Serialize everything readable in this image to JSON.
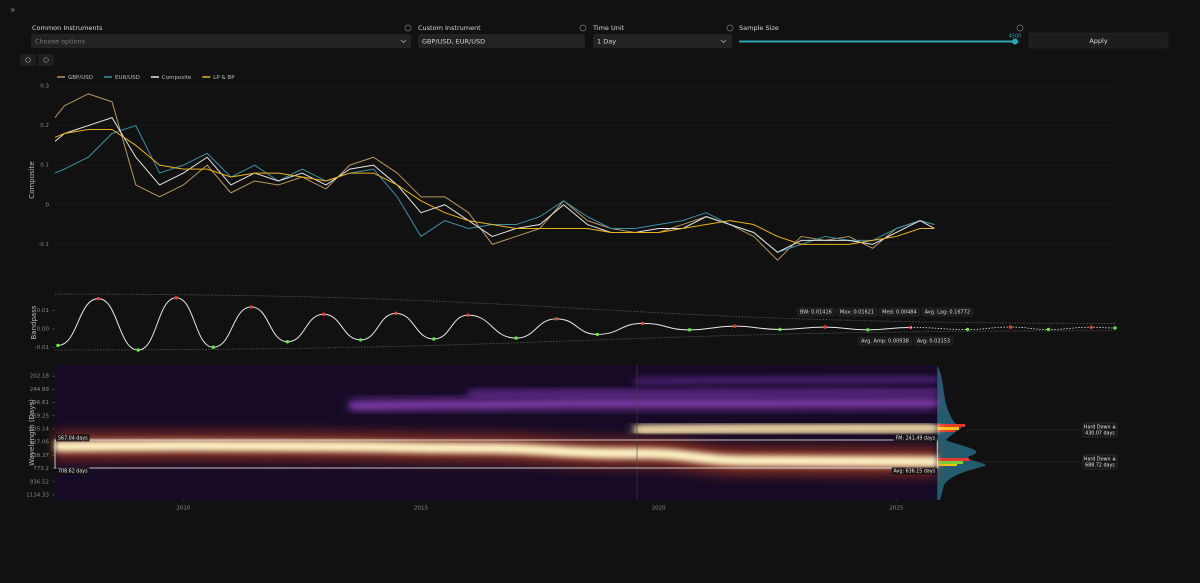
{
  "sidebar_toggle": "»",
  "controls": {
    "common_instruments": {
      "label": "Common Instruments",
      "placeholder": "Choose options"
    },
    "custom_instrument": {
      "label": "Custom Instrument",
      "value": "GBP/USD, EUR/USD"
    },
    "time_unit": {
      "label": "Time Unit",
      "value": "1 Day"
    },
    "sample_size": {
      "label": "Sample Size",
      "value": 4500
    },
    "apply": "Apply"
  },
  "chart_data": [
    {
      "type": "line",
      "ylabel": "Composite",
      "xlim": [
        2007.3,
        2029.6
      ],
      "ylim": [
        -0.19,
        0.315
      ],
      "yticks": [
        0.3,
        0.2,
        0.1,
        0,
        -0.1
      ],
      "grid": true,
      "legend": "top-left",
      "x": [
        2007.3,
        2007.5,
        2008.0,
        2008.5,
        2009.0,
        2009.5,
        2010.0,
        2010.5,
        2011.0,
        2011.5,
        2012.0,
        2012.5,
        2013.0,
        2013.5,
        2014.0,
        2014.5,
        2015.0,
        2015.5,
        2016.0,
        2016.5,
        2017.0,
        2017.5,
        2018.0,
        2018.5,
        2019.0,
        2019.5,
        2020.0,
        2020.5,
        2021.0,
        2021.5,
        2022.0,
        2022.5,
        2023.0,
        2023.5,
        2024.0,
        2024.5,
        2025.0,
        2025.5,
        2025.8
      ],
      "series": [
        {
          "name": "GBP/USD",
          "color": "#b89664",
          "values": [
            0.22,
            0.25,
            0.28,
            0.26,
            0.05,
            0.02,
            0.05,
            0.1,
            0.03,
            0.06,
            0.05,
            0.07,
            0.04,
            0.1,
            0.12,
            0.08,
            0.02,
            0.02,
            -0.02,
            -0.1,
            -0.08,
            -0.06,
            0.01,
            -0.04,
            -0.06,
            -0.07,
            -0.07,
            -0.05,
            -0.03,
            -0.05,
            -0.08,
            -0.14,
            -0.08,
            -0.09,
            -0.08,
            -0.11,
            -0.06,
            -0.04,
            -0.05
          ]
        },
        {
          "name": "EUR/USD",
          "color": "#3d8fa5",
          "values": [
            0.08,
            0.09,
            0.12,
            0.18,
            0.2,
            0.08,
            0.1,
            0.13,
            0.07,
            0.1,
            0.06,
            0.09,
            0.06,
            0.08,
            0.09,
            0.02,
            -0.08,
            -0.04,
            -0.06,
            -0.05,
            -0.05,
            -0.03,
            0.01,
            -0.03,
            -0.06,
            -0.06,
            -0.05,
            -0.04,
            -0.02,
            -0.05,
            -0.07,
            -0.12,
            -0.1,
            -0.08,
            -0.09,
            -0.09,
            -0.06,
            -0.04,
            -0.05
          ]
        },
        {
          "name": "Composite",
          "color": "#e6e6e6",
          "values": [
            0.16,
            0.18,
            0.2,
            0.22,
            0.12,
            0.05,
            0.08,
            0.12,
            0.05,
            0.08,
            0.06,
            0.08,
            0.05,
            0.09,
            0.1,
            0.05,
            -0.02,
            0.0,
            -0.04,
            -0.08,
            -0.06,
            -0.05,
            0.0,
            -0.05,
            -0.07,
            -0.07,
            -0.06,
            -0.06,
            -0.03,
            -0.05,
            -0.07,
            -0.12,
            -0.09,
            -0.09,
            -0.09,
            -0.1,
            -0.07,
            -0.04,
            -0.06
          ]
        },
        {
          "name": "LP & BP",
          "color": "#e6b422",
          "values": [
            0.17,
            0.18,
            0.19,
            0.19,
            0.15,
            0.1,
            0.09,
            0.09,
            0.07,
            0.08,
            0.08,
            0.07,
            0.06,
            0.08,
            0.08,
            0.05,
            0.01,
            -0.02,
            -0.04,
            -0.05,
            -0.06,
            -0.06,
            -0.06,
            -0.06,
            -0.07,
            -0.07,
            -0.07,
            -0.06,
            -0.05,
            -0.04,
            -0.05,
            -0.08,
            -0.1,
            -0.1,
            -0.1,
            -0.09,
            -0.08,
            -0.06,
            -0.06
          ]
        }
      ]
    },
    {
      "type": "line",
      "ylabel": "Bandpass",
      "xlim": [
        2007.3,
        2029.6
      ],
      "ylim": [
        -0.0115,
        0.0185
      ],
      "yticks": [
        0.01,
        {
          "value": 0,
          "label": "0.00"
        },
        -0.01
      ],
      "smooth": true,
      "extrema_markers": true,
      "peak_color": "#e0443c",
      "trough_color": "#6be04a",
      "series": [
        {
          "color": "#5a5a5a",
          "dash": true,
          "x": [
            2007.3,
            2029.6
          ],
          "values": [
            0.019,
            0.003
          ]
        },
        {
          "color": "#5a5a5a",
          "dash": true,
          "x": [
            2007.3,
            2029.6
          ],
          "values": [
            -0.0115,
            -0.001
          ]
        },
        {
          "color": "#e8e8e8",
          "x": [
            2007.36,
            2008.21,
            2009.05,
            2009.85,
            2010.63,
            2011.43,
            2012.19,
            2012.95,
            2013.73,
            2014.47,
            2015.27,
            2015.99,
            2017.0,
            2017.85,
            2018.71,
            2019.66,
            2020.65,
            2021.6,
            2022.55,
            2023.5,
            2024.4,
            2025.3
          ],
          "values": [
            -0.009,
            0.0165,
            -0.0115,
            0.017,
            -0.01,
            0.012,
            -0.007,
            0.008,
            -0.006,
            0.0085,
            -0.0055,
            0.0075,
            -0.005,
            0.0055,
            -0.003,
            0.003,
            -0.0005,
            0.0015,
            -0.0003,
            0.001,
            -0.0005,
            0.0008
          ]
        },
        {
          "color": "#e8e8e8",
          "dash": true,
          "x": [
            2025.3,
            2026.5,
            2027.4,
            2028.2,
            2029.1,
            2029.6
          ],
          "values": [
            0.0008,
            -0.0003,
            0.001,
            -0.0003,
            0.0009,
            0.0005
          ]
        }
      ],
      "stats": [
        "BW: 0.01416",
        "Max: 0.01621",
        "Med: 0.00484",
        "Avg. Lag: 0.16772"
      ],
      "stats_2": [
        "Avg. Amp: 0.00938",
        "Avg: 0.03153"
      ]
    },
    {
      "type": "heatmap",
      "ylabel": "Wavelength (Days)",
      "xlim": [
        2007.3,
        2029.6
      ],
      "xticks": [
        2010,
        2015,
        2020,
        2025
      ],
      "ylim": [
        172,
        1220
      ],
      "log": true,
      "y_inverted": true,
      "yticks": [
        202.18,
        244.89,
        296.61,
        359.25,
        435.14,
        527.06,
        638.37,
        773.2,
        936.52,
        1134.33
      ],
      "series": [
        {
          "color": "#fff3c4",
          "x": [
            2007.3,
            2010.0,
            2013.0,
            2016.0,
            2019.5,
            2022.0,
            2025.86
          ],
          "values": [
            560,
            555,
            560,
            575,
            620,
            690,
            700
          ]
        },
        {
          "color": "#ffe9b0",
          "x": [
            2019.5,
            2021.5,
            2023.5,
            2025.86
          ],
          "values": [
            440,
            435,
            432,
            430
          ]
        },
        {
          "color": "#8a3fb8",
          "x": [
            2013.5,
            2016.0,
            2019.0,
            2022.0,
            2025.86
          ],
          "values": [
            310,
            305,
            300,
            300,
            298
          ]
        },
        {
          "color": "#6a2f9a",
          "x": [
            2016.0,
            2019.0,
            2022.0,
            2025.86
          ],
          "values": [
            262,
            260,
            258,
            255
          ]
        },
        {
          "color": "#5a2888",
          "x": [
            2019.5,
            2022.0,
            2025.86
          ],
          "values": [
            218,
            215,
            212
          ]
        }
      ],
      "band_labels": [
        "567.04 days",
        "708.62 days"
      ],
      "right_labels": [
        "FM: 241.49 days",
        "Avg: 636.15 days"
      ],
      "signals": [
        {
          "label": "Hard Down ⇊",
          "days": "430.07 days"
        },
        {
          "label": "Hard Down ⇊",
          "days": "688.72 days"
        }
      ]
    }
  ]
}
